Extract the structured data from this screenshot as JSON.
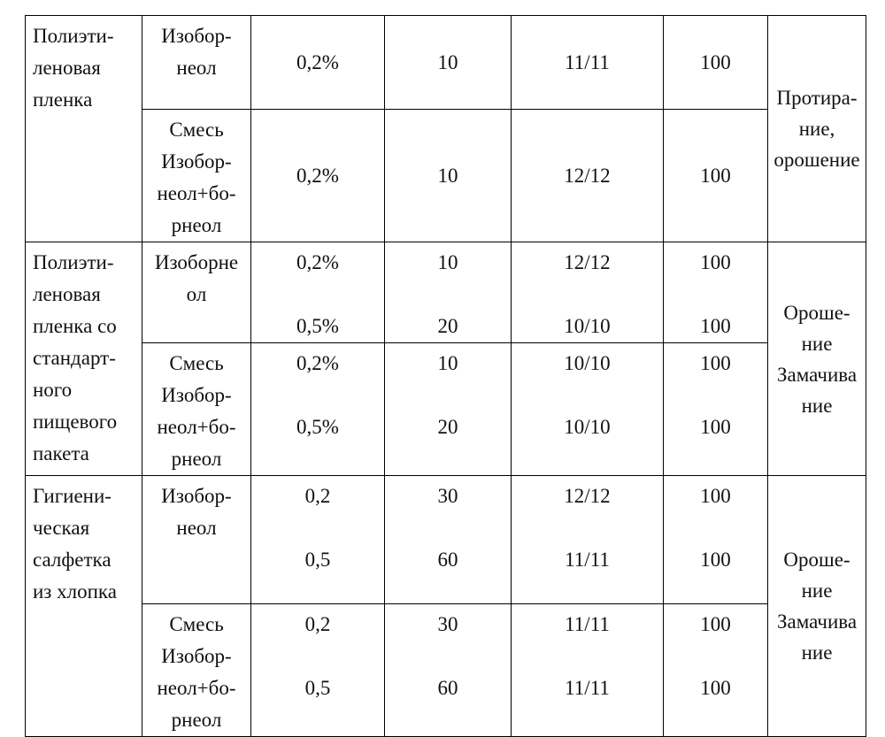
{
  "rows": {
    "g1": {
      "material": [
        "Полиэти-",
        "леновая",
        "пленка"
      ],
      "method": [
        "Протира-",
        "ние,",
        "орошение"
      ],
      "r1": {
        "substance": [
          "Изобор-",
          "неол"
        ],
        "conc": "0,2%",
        "time": "10",
        "ratio": "11/11",
        "eff": "100"
      },
      "r2": {
        "substance": [
          "Смесь",
          "Изобор-",
          "неол+бо-",
          "рнеол"
        ],
        "conc": "0,2%",
        "time": "10",
        "ratio": "12/12",
        "eff": "100"
      }
    },
    "g2": {
      "material": [
        "Полиэти-",
        "леновая",
        "пленка со",
        "стандарт-",
        "ного",
        "пищевого",
        "пакета"
      ],
      "method": [
        "Ороше-",
        "ние",
        "Замачива",
        "ние"
      ],
      "r1": {
        "substance": [
          "Изоборне",
          "ол"
        ],
        "conc": [
          "0,2%",
          "0,5%"
        ],
        "time": [
          "10",
          "20"
        ],
        "ratio": [
          "12/12",
          "10/10"
        ],
        "eff": [
          "100",
          "100"
        ]
      },
      "r2": {
        "substance": [
          "Смесь",
          "Изобор-",
          "неол+бо-",
          "рнеол"
        ],
        "conc": [
          "0,2%",
          "0,5%"
        ],
        "time": [
          "10",
          "20"
        ],
        "ratio": [
          "10/10",
          "10/10"
        ],
        "eff": [
          "100",
          "100"
        ]
      }
    },
    "g3": {
      "material": [
        "Гигиени-",
        "ческая",
        "салфетка",
        "из хлопка"
      ],
      "method": [
        "Ороше-",
        "ние",
        "Замачива",
        "ние"
      ],
      "r1": {
        "substance": [
          "Изобор-",
          "неол"
        ],
        "conc": [
          "0,2",
          "0,5"
        ],
        "time": [
          "30",
          "60"
        ],
        "ratio": [
          "12/12",
          "11/11"
        ],
        "eff": [
          "100",
          "100"
        ]
      },
      "r2": {
        "substance": [
          "Смесь",
          "Изобор-",
          "неол+бо-",
          "рнеол"
        ],
        "conc": [
          "0,2",
          "0,5"
        ],
        "time": [
          "30",
          "60"
        ],
        "ratio": [
          "11/11",
          "11/11"
        ],
        "eff": [
          "100",
          "100"
        ]
      }
    }
  }
}
